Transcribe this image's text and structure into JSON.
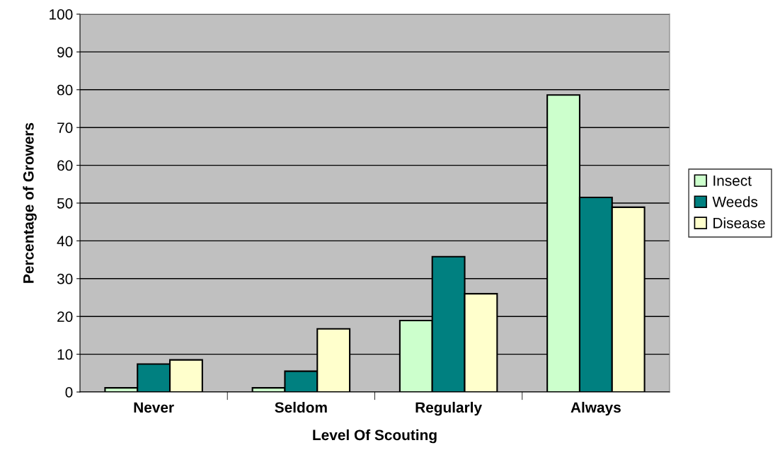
{
  "chart_data": {
    "type": "bar",
    "xlabel": "Level Of Scouting",
    "ylabel": "Percentage of Growers",
    "categories": [
      "Never",
      "Seldom",
      "Regularly",
      "Always"
    ],
    "series": [
      {
        "name": "Insect",
        "color": "#ccffcc",
        "values": [
          1.1,
          1.1,
          18.9,
          78.6
        ]
      },
      {
        "name": "Weeds",
        "color": "#008080",
        "values": [
          7.4,
          5.5,
          35.8,
          51.5
        ]
      },
      {
        "name": "Disease",
        "color": "#ffffcc",
        "values": [
          8.5,
          16.7,
          26.0,
          48.9
        ]
      }
    ],
    "ylim": [
      0,
      100
    ],
    "yticks": [
      0,
      10,
      20,
      30,
      40,
      50,
      60,
      70,
      80,
      90,
      100
    ],
    "grid": "y",
    "legend": "right"
  }
}
